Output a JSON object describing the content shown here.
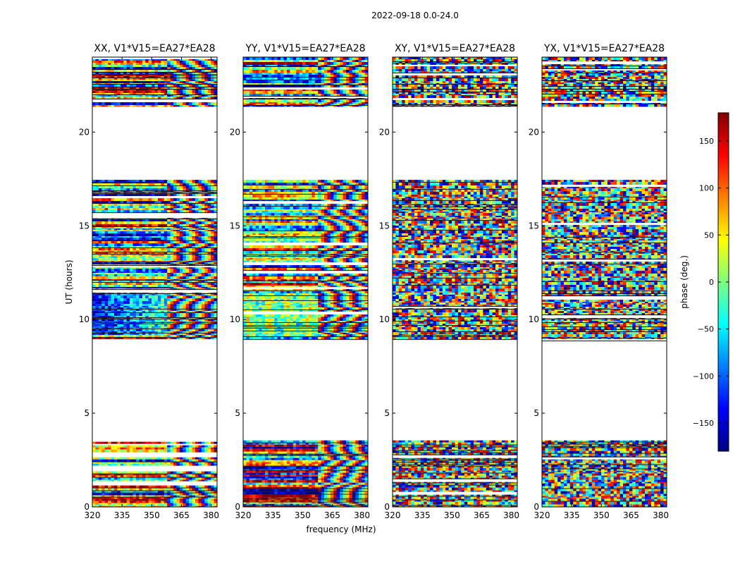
{
  "chart_data": {
    "type": "heatmap",
    "title": "2022-09-18 0.0-24.0",
    "xlabel": "frequency (MHz)",
    "ylabel": "UT (hours)",
    "xlim": [
      320,
      383
    ],
    "ylim": [
      0,
      24
    ],
    "xticks": [
      320,
      335,
      350,
      365,
      380
    ],
    "yticks": [
      0,
      5,
      10,
      15,
      20
    ],
    "colorbar": {
      "label": "phase (deg.)",
      "range": [
        -180,
        180
      ],
      "ticks": [
        150,
        100,
        50,
        0,
        -50,
        -100,
        -150
      ],
      "colormap": "jet"
    },
    "data_time_ranges": [
      [
        0.0,
        3.55
      ],
      [
        8.95,
        17.45
      ],
      [
        21.35,
        24.0
      ]
    ],
    "panels": [
      {
        "title": "XX, V1*V15=EA27*EA28",
        "polarization": "XX"
      },
      {
        "title": "YY, V1*V15=EA27*EA28",
        "polarization": "YY"
      },
      {
        "title": "XY, V1*V15=EA27*EA28",
        "polarization": "XY"
      },
      {
        "title": "YX, V1*V15=EA27*EA28",
        "polarization": "YX"
      }
    ]
  },
  "colors": {
    "jet": [
      "#00007f",
      "#0000ff",
      "#007fff",
      "#00ffff",
      "#7fff7f",
      "#ffff00",
      "#ff7f00",
      "#ff0000",
      "#7f0000"
    ]
  }
}
